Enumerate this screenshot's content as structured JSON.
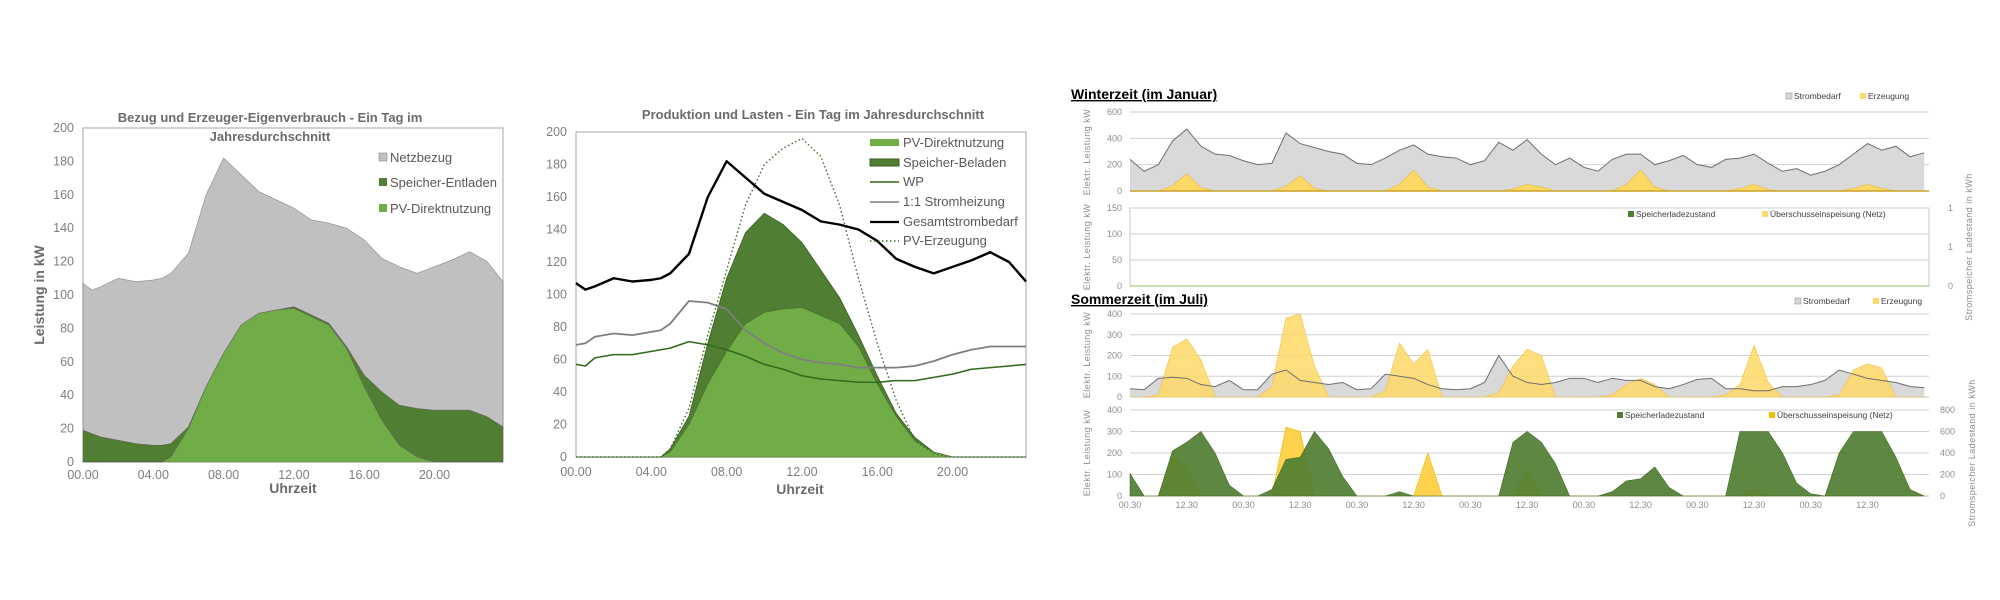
{
  "sections": {
    "winter_title": "Winterzeit (im Januar)",
    "summer_title": "Sommerzeit (im Juli)"
  },
  "colors": {
    "grey_area": "#c0c0c0",
    "grey_line": "#6e6e6e",
    "dark_green": "#507e32",
    "light_green": "#70ad47",
    "wp_green": "#2f6b1a",
    "heating_grey": "#7f7f7f",
    "black": "#000000",
    "yellow": "#ffd966",
    "surplus_yellow": "#e6b800"
  },
  "chart_data": [
    {
      "id": "c1",
      "type": "area",
      "title_lines": [
        "Bezug und Erzeuger-Eigenverbrauch - Ein Tag im",
        "Jahresdurchschnitt"
      ],
      "xlabel": "Uhrzeit",
      "ylabel": "Leistung in kW",
      "xlim": [
        0,
        23.9
      ],
      "ylim": [
        0,
        200
      ],
      "ystep": 20,
      "xticks": [
        {
          "x": 0,
          "label": "00.00"
        },
        {
          "x": 4,
          "label": "04.00"
        },
        {
          "x": 8,
          "label": "08.00"
        },
        {
          "x": 12,
          "label": "12.00"
        },
        {
          "x": 16,
          "label": "16.00"
        },
        {
          "x": 20,
          "label": "20.00"
        }
      ],
      "legend": "top-right",
      "stacked": true,
      "x": [
        0,
        0.5,
        1,
        2,
        3,
        4,
        4.5,
        5,
        6,
        7,
        8,
        9,
        10,
        11,
        12,
        13,
        14,
        15,
        16,
        17,
        18,
        19,
        20,
        21,
        22,
        23,
        23.9
      ],
      "series": [
        {
          "name": "PV-Direktnutzung",
          "values": [
            0,
            0,
            0,
            0,
            0,
            0,
            0,
            3,
            20,
            45,
            65,
            82,
            89,
            91,
            92,
            87,
            82,
            68,
            45,
            25,
            10,
            3,
            0,
            0,
            0,
            0,
            0
          ]
        },
        {
          "name": "Speicher-Entladen",
          "values": [
            19,
            17,
            15,
            13,
            11,
            10,
            10,
            8,
            1,
            0,
            0,
            0,
            0,
            0,
            1,
            1,
            1,
            1,
            7,
            17,
            24,
            29,
            31,
            31,
            31,
            27,
            21
          ]
        },
        {
          "name": "Netzbezug",
          "values": [
            88,
            86,
            90,
            97,
            97,
            99,
            100,
            102,
            104,
            115,
            117,
            90,
            73,
            66,
            59,
            57,
            60,
            71,
            81,
            80,
            83,
            81,
            86,
            90,
            95,
            93,
            87
          ]
        }
      ]
    },
    {
      "id": "c2",
      "type": "area+line",
      "title": "Produktion und Lasten - Ein Tag im Jahresdurchschnitt",
      "xlabel": "Uhrzeit",
      "ylabel": "",
      "xlim": [
        0,
        23.9
      ],
      "ylim": [
        0,
        200
      ],
      "ystep": 20,
      "xticks": [
        {
          "x": 0,
          "label": "00.00"
        },
        {
          "x": 4,
          "label": "04.00"
        },
        {
          "x": 8,
          "label": "08.00"
        },
        {
          "x": 12,
          "label": "12.00"
        },
        {
          "x": 16,
          "label": "16.00"
        },
        {
          "x": 20,
          "label": "20.00"
        }
      ],
      "legend": "top-right",
      "x": [
        0,
        0.5,
        1,
        2,
        3,
        4,
        4.5,
        5,
        6,
        7,
        8,
        9,
        10,
        11,
        12,
        13,
        14,
        15,
        16,
        17,
        18,
        19,
        20,
        21,
        22,
        23,
        23.9
      ],
      "series": [
        {
          "name": "PV-Direktnutzung",
          "kind": "area",
          "values": [
            0,
            0,
            0,
            0,
            0,
            0,
            0,
            3,
            20,
            45,
            65,
            82,
            89,
            91,
            92,
            87,
            82,
            68,
            45,
            25,
            10,
            3,
            0,
            0,
            0,
            0,
            0
          ]
        },
        {
          "name": "Speicher-Beladen",
          "kind": "area-stacked",
          "values": [
            0,
            0,
            0,
            0,
            0,
            0,
            0,
            2,
            5,
            25,
            45,
            56,
            61,
            52,
            40,
            28,
            16,
            7,
            5,
            2,
            2,
            0,
            0,
            0,
            0,
            0,
            0
          ]
        },
        {
          "name": "WP",
          "kind": "line",
          "values": [
            57,
            56,
            61,
            63,
            63,
            65,
            66,
            67,
            71,
            69,
            66,
            62,
            57,
            54,
            50,
            48,
            47,
            46,
            46,
            47,
            47,
            49,
            51,
            54,
            55,
            56,
            57
          ]
        },
        {
          "name": "1:1 Stromheizung",
          "kind": "line",
          "values": [
            69,
            70,
            74,
            76,
            75,
            77,
            78,
            82,
            96,
            95,
            91,
            78,
            70,
            64,
            60,
            58,
            57,
            55,
            55,
            55,
            56,
            59,
            63,
            66,
            68,
            68,
            68
          ]
        },
        {
          "name": "Gesamtstrombedarf",
          "kind": "line",
          "values": [
            107,
            103,
            105,
            110,
            108,
            109,
            110,
            113,
            125,
            160,
            182,
            172,
            162,
            157,
            152,
            145,
            143,
            140,
            133,
            122,
            117,
            113,
            117,
            121,
            126,
            120,
            108
          ]
        },
        {
          "name": "PV-Erzeugung",
          "kind": "dotted",
          "values": [
            0,
            0,
            0,
            0,
            0,
            0,
            0,
            5,
            30,
            75,
            115,
            155,
            180,
            190,
            196,
            185,
            155,
            110,
            70,
            35,
            10,
            2,
            0,
            0,
            0,
            0,
            0
          ]
        }
      ]
    },
    {
      "id": "w1",
      "type": "area",
      "section": "winter",
      "ylabel": "Elektr. Leistung kW",
      "ylim": [
        0,
        600
      ],
      "ystep": 200,
      "xlim": [
        0,
        169
      ],
      "xstep_hours": 3,
      "legend": "top-right",
      "series": [
        {
          "name": "Strombedarf",
          "values": [
            240,
            150,
            200,
            380,
            470,
            340,
            280,
            270,
            230,
            200,
            210,
            440,
            360,
            330,
            300,
            280,
            210,
            200,
            250,
            310,
            350,
            280,
            260,
            250,
            200,
            230,
            370,
            310,
            390,
            280,
            200,
            250,
            180,
            150,
            240,
            280,
            280,
            200,
            230,
            270,
            200,
            180,
            240,
            250,
            280,
            210,
            150,
            170,
            120,
            150,
            200,
            280,
            360,
            310,
            340,
            260,
            290
          ]
        },
        {
          "name": "Erzeugung",
          "values": [
            0,
            0,
            0,
            40,
            130,
            25,
            0,
            0,
            0,
            0,
            0,
            35,
            115,
            20,
            0,
            0,
            0,
            0,
            0,
            50,
            160,
            30,
            0,
            0,
            0,
            0,
            0,
            15,
            50,
            30,
            0,
            0,
            0,
            0,
            0,
            50,
            160,
            30,
            0,
            0,
            0,
            0,
            0,
            20,
            50,
            10,
            0,
            0,
            0,
            0,
            0,
            20,
            50,
            20,
            0,
            0,
            0
          ]
        }
      ]
    },
    {
      "id": "w2",
      "type": "area",
      "section": "winter",
      "ylabel": "Elektr. Leistung kW",
      "y2label": "Stromspeicher Ladestand in kWh",
      "ylim": [
        0,
        150
      ],
      "ystep": 50,
      "y2_tick_labels": [
        "0",
        "1",
        "1"
      ],
      "legend": "top-right",
      "series": [
        {
          "name": "Speicherladezustand",
          "values": []
        },
        {
          "name": "Überschusseinspeisung (Netz)",
          "values": []
        }
      ]
    },
    {
      "id": "s1",
      "type": "area",
      "section": "summer",
      "ylabel": "Elektr. Leistung kW",
      "ylim": [
        0,
        400
      ],
      "ystep": 100,
      "xlim": [
        0,
        169
      ],
      "xstep_hours": 3,
      "legend": "top-right",
      "series": [
        {
          "name": "Strombedarf",
          "values": [
            40,
            35,
            90,
            95,
            90,
            60,
            50,
            80,
            35,
            35,
            110,
            130,
            80,
            70,
            60,
            70,
            35,
            40,
            110,
            100,
            90,
            60,
            40,
            35,
            40,
            70,
            200,
            100,
            70,
            60,
            70,
            90,
            90,
            70,
            90,
            80,
            80,
            50,
            40,
            60,
            85,
            90,
            40,
            40,
            30,
            30,
            50,
            50,
            60,
            80,
            130,
            110,
            90,
            80,
            70,
            50,
            45
          ]
        },
        {
          "name": "Erzeugung",
          "values": [
            0,
            0,
            10,
            240,
            280,
            180,
            0,
            0,
            0,
            0,
            50,
            380,
            400,
            150,
            0,
            0,
            0,
            0,
            30,
            260,
            160,
            230,
            0,
            0,
            0,
            0,
            20,
            150,
            230,
            200,
            0,
            0,
            0,
            0,
            10,
            60,
            90,
            60,
            0,
            0,
            0,
            0,
            10,
            60,
            250,
            70,
            0,
            0,
            0,
            0,
            10,
            130,
            160,
            140,
            0,
            0,
            0
          ]
        }
      ]
    },
    {
      "id": "s2",
      "type": "area",
      "section": "summer",
      "ylabel": "Elektr. Leistung kW",
      "y2label": "Stromspeicher Ladestand in kWh",
      "ylim": [
        0,
        400
      ],
      "ystep": 100,
      "y2lim": [
        0,
        800
      ],
      "y2step": 200,
      "xlim": [
        0,
        169
      ],
      "xstep_hours": 3,
      "xticks": [
        "00.30",
        "12.30",
        "00.30",
        "12.30",
        "00.30",
        "12.30",
        "00.30",
        "12.30",
        "00.30",
        "12.30",
        "00.30",
        "12.30",
        "00.30",
        "12.30"
      ],
      "legend": "top-right",
      "series": [
        {
          "name": "Speicherladezustand",
          "axis": "y2",
          "values": [
            210,
            0,
            0,
            420,
            500,
            600,
            400,
            100,
            0,
            0,
            60,
            340,
            360,
            600,
            440,
            180,
            0,
            0,
            0,
            40,
            0,
            0,
            0,
            0,
            0,
            0,
            0,
            500,
            600,
            500,
            300,
            0,
            0,
            0,
            40,
            140,
            160,
            270,
            80,
            0,
            0,
            0,
            0,
            600,
            600,
            600,
            400,
            120,
            20,
            0,
            400,
            600,
            600,
            600,
            360,
            60,
            0
          ]
        },
        {
          "name": "Überschusseinspeisung (Netz)",
          "axis": "y",
          "values": [
            0,
            0,
            0,
            190,
            130,
            0,
            0,
            0,
            0,
            0,
            0,
            320,
            300,
            0,
            0,
            0,
            0,
            0,
            0,
            0,
            0,
            200,
            0,
            0,
            0,
            0,
            0,
            0,
            130,
            0,
            0,
            0,
            0,
            0,
            0,
            0,
            0,
            0,
            0,
            0,
            0,
            0,
            0,
            0,
            35,
            0,
            0,
            0,
            0,
            0,
            0,
            0,
            0,
            0,
            0,
            0,
            0
          ]
        }
      ]
    }
  ]
}
